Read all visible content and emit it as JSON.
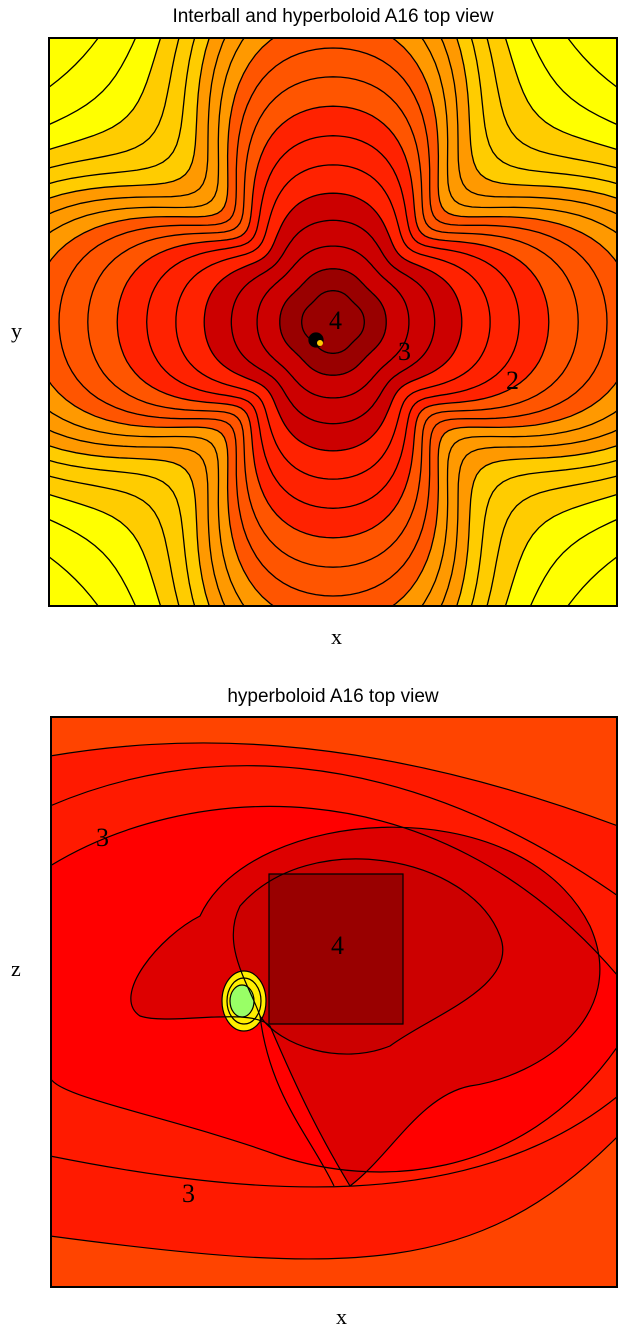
{
  "chart_data": [
    {
      "type": "contour",
      "title": "Interball and hyperboloid A16 top view",
      "xlabel": "x",
      "ylabel": "y",
      "contour_labels": [
        "4",
        "3",
        "2"
      ],
      "colormap": [
        "#ffff00",
        "#ffcc00",
        "#ff9900",
        "#ff5500",
        "#ff2200",
        "#cc0000",
        "#990000"
      ],
      "grid": false
    },
    {
      "type": "contour",
      "title": "hyperboloid A16 top view",
      "xlabel": "x",
      "ylabel": "z",
      "contour_labels": [
        "3",
        "4",
        "3"
      ],
      "colormap": [
        "#ff4400",
        "#ff1a00",
        "#dd0000",
        "#990000",
        "#99ff66"
      ],
      "grid": false
    }
  ]
}
